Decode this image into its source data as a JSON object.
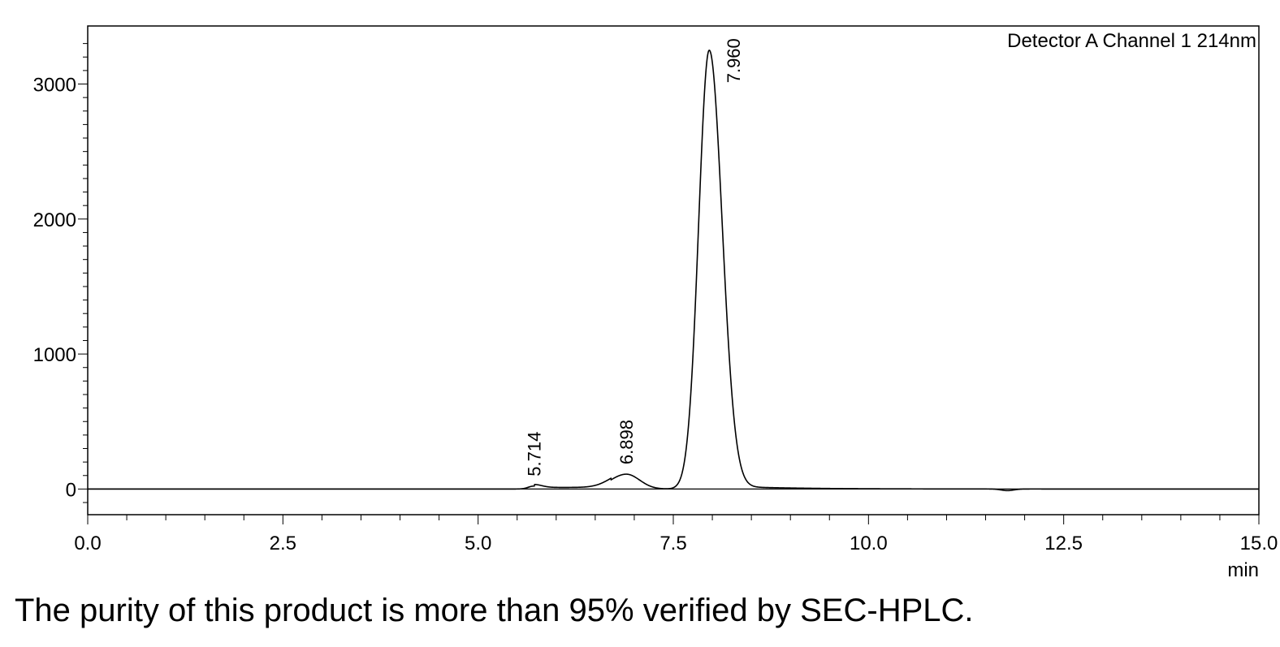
{
  "chart_data": {
    "type": "line",
    "title": "",
    "legend": "Detector A Channel 1 214nm",
    "xlabel": "min",
    "ylabel": "",
    "xlim": [
      0,
      15
    ],
    "ylim": [
      -190,
      3430
    ],
    "x_ticks": [
      "0.0",
      "2.5",
      "5.0",
      "7.5",
      "10.0",
      "12.5",
      "15.0"
    ],
    "y_ticks": [
      "0",
      "1000",
      "2000",
      "3000"
    ],
    "grid": false,
    "series": [
      {
        "peaks": [
          {
            "rt": 5.714,
            "height": 22,
            "label": "5.714"
          },
          {
            "rt": 6.898,
            "height": 110,
            "label": "6.898"
          },
          {
            "rt": 7.96,
            "height": 3250,
            "label": "7.960"
          }
        ]
      }
    ],
    "annotations": [
      "5.714",
      "6.898",
      "7.960"
    ],
    "line_color": "#000000"
  },
  "caption": "The purity of this product is more than 95% verified by SEC-HPLC."
}
